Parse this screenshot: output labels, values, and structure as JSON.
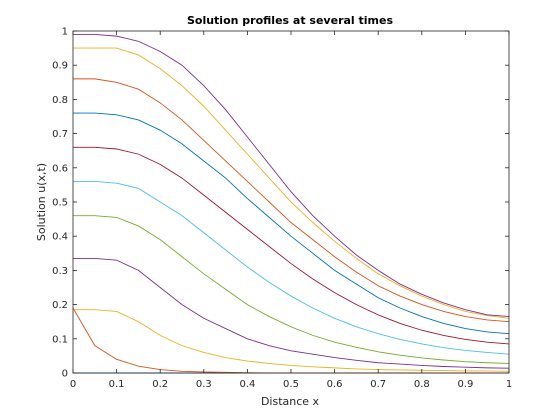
{
  "chart_data": {
    "type": "line",
    "title": "Solution profiles at several times",
    "xlabel": "Distance x",
    "ylabel": "Solution u(x,t)",
    "xlim": [
      0,
      1
    ],
    "ylim": [
      0,
      1
    ],
    "x_ticks": [
      "0",
      "0.1",
      "0.2",
      "0.3",
      "0.4",
      "0.5",
      "0.6",
      "0.7",
      "0.8",
      "0.9",
      "1"
    ],
    "y_ticks": [
      "0",
      "0.1",
      "0.2",
      "0.3",
      "0.4",
      "0.5",
      "0.6",
      "0.7",
      "0.8",
      "0.9",
      "1"
    ],
    "grid": false,
    "legend": "none",
    "x": [
      0,
      0.05,
      0.1,
      0.15,
      0.2,
      0.25,
      0.3,
      0.35,
      0.4,
      0.45,
      0.5,
      0.55,
      0.6,
      0.65,
      0.7,
      0.75,
      0.8,
      0.85,
      0.9,
      0.95,
      1
    ],
    "series_colors": [
      "#0072bd",
      "#d95319",
      "#edb120",
      "#7e2f8e",
      "#77ac30",
      "#4dbeee",
      "#a2142f"
    ],
    "series": [
      {
        "values": [
          0,
          0,
          0,
          0,
          0,
          0,
          0,
          0,
          0,
          0,
          0,
          0,
          0,
          0,
          0,
          0,
          0,
          0,
          0,
          0,
          0
        ]
      },
      {
        "values": [
          0.19,
          0.08,
          0.04,
          0.02,
          0.01,
          0.005,
          0.003,
          0.002,
          0.001,
          0,
          0,
          0,
          0,
          0,
          0,
          0,
          0,
          0,
          0,
          0,
          0
        ]
      },
      {
        "values": [
          0.185,
          0.185,
          0.18,
          0.15,
          0.11,
          0.08,
          0.06,
          0.045,
          0.035,
          0.028,
          0.022,
          0.018,
          0.015,
          0.012,
          0.01,
          0.009,
          0.008,
          0.007,
          0.006,
          0.006,
          0.005
        ]
      },
      {
        "values": [
          0.335,
          0.335,
          0.33,
          0.3,
          0.25,
          0.2,
          0.16,
          0.13,
          0.1,
          0.08,
          0.065,
          0.055,
          0.045,
          0.037,
          0.03,
          0.026,
          0.022,
          0.019,
          0.017,
          0.015,
          0.014
        ]
      },
      {
        "values": [
          0.46,
          0.46,
          0.455,
          0.43,
          0.39,
          0.34,
          0.29,
          0.245,
          0.2,
          0.165,
          0.135,
          0.11,
          0.09,
          0.075,
          0.062,
          0.052,
          0.044,
          0.038,
          0.033,
          0.03,
          0.028
        ]
      },
      {
        "values": [
          0.56,
          0.56,
          0.555,
          0.54,
          0.5,
          0.46,
          0.41,
          0.36,
          0.31,
          0.265,
          0.225,
          0.19,
          0.16,
          0.135,
          0.115,
          0.098,
          0.085,
          0.074,
          0.066,
          0.06,
          0.055
        ]
      },
      {
        "values": [
          0.66,
          0.66,
          0.655,
          0.64,
          0.61,
          0.57,
          0.52,
          0.47,
          0.42,
          0.37,
          0.32,
          0.275,
          0.235,
          0.2,
          0.17,
          0.145,
          0.125,
          0.11,
          0.098,
          0.09,
          0.085
        ]
      },
      {
        "values": [
          0.76,
          0.76,
          0.755,
          0.74,
          0.71,
          0.67,
          0.62,
          0.57,
          0.51,
          0.455,
          0.4,
          0.35,
          0.3,
          0.26,
          0.22,
          0.19,
          0.165,
          0.145,
          0.13,
          0.12,
          0.115
        ]
      },
      {
        "values": [
          0.86,
          0.86,
          0.85,
          0.83,
          0.79,
          0.74,
          0.68,
          0.62,
          0.56,
          0.5,
          0.44,
          0.39,
          0.34,
          0.295,
          0.255,
          0.225,
          0.2,
          0.18,
          0.165,
          0.155,
          0.15
        ]
      },
      {
        "values": [
          0.95,
          0.95,
          0.95,
          0.93,
          0.89,
          0.84,
          0.78,
          0.71,
          0.64,
          0.57,
          0.5,
          0.44,
          0.385,
          0.335,
          0.29,
          0.255,
          0.225,
          0.2,
          0.18,
          0.168,
          0.16
        ]
      },
      {
        "values": [
          0.99,
          0.99,
          0.985,
          0.97,
          0.94,
          0.9,
          0.84,
          0.77,
          0.69,
          0.61,
          0.53,
          0.46,
          0.4,
          0.345,
          0.3,
          0.26,
          0.23,
          0.205,
          0.185,
          0.17,
          0.165
        ]
      }
    ]
  }
}
